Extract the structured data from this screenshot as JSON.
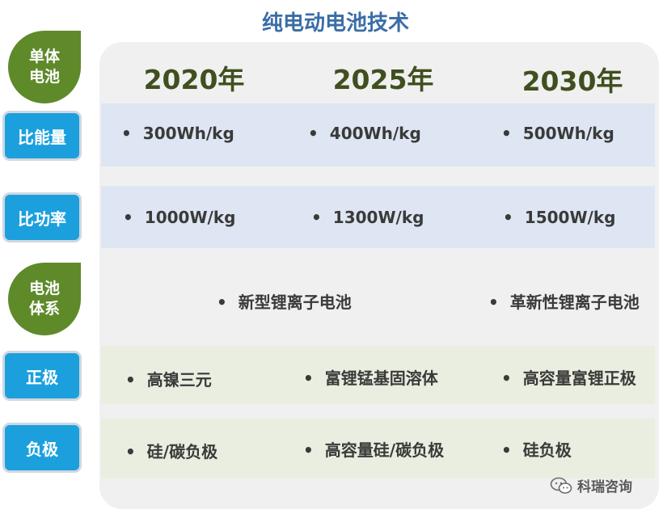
{
  "title": "纯电动电池技术",
  "row_header": "单体电池",
  "row_header_lines": [
    "单体",
    "电池"
  ],
  "years": [
    "2020年",
    "2025年",
    "2030年"
  ],
  "rows": {
    "energy": {
      "label": "比能量",
      "values": [
        "300Wh/kg",
        "400Wh/kg",
        "500Wh/kg"
      ]
    },
    "power": {
      "label": "比功率",
      "values": [
        "1000W/kg",
        "1300W/kg",
        "1500W/kg"
      ]
    },
    "system": {
      "label": "电池体系",
      "label_lines": [
        "电池",
        "体系"
      ],
      "values": [
        "新型锂离子电池",
        "革新性锂离子电池"
      ]
    },
    "cathode": {
      "label": "正极",
      "values": [
        "高镍三元",
        "富锂锰基固溶体",
        "高容量富锂正极"
      ]
    },
    "anode": {
      "label": "负极",
      "values": [
        "硅/碳负极",
        "高容量硅/碳负极",
        "硅负极"
      ]
    }
  },
  "bullet": "•",
  "watermark": "科瑞咨询",
  "colors": {
    "title": "#3a6da6",
    "year": "#3f4f1f",
    "label_blue": "#1ba0dd",
    "label_green": "#5e8a2a",
    "band_blue": "#dde6f2",
    "band_green": "#e9eee0",
    "panel": "#f0f0f0"
  }
}
